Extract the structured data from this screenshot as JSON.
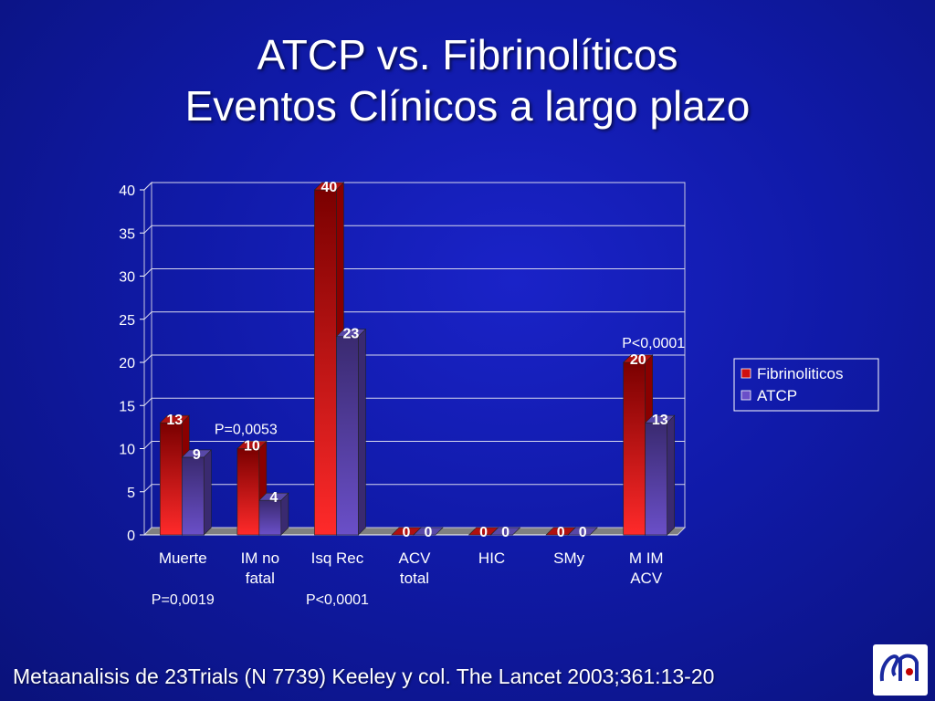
{
  "slide": {
    "title_line1": "ATCP vs. Fibrinolíticos",
    "title_line2": "Eventos Clínicos a largo plazo",
    "footer": "Metaanalisis de 23Trials (N 7739) Keeley y col. The Lancet 2003;361:13-20"
  },
  "colors": {
    "fibrinoliticos": "#d01010",
    "atcp": "#6a4fc8"
  },
  "chart_data": {
    "type": "bar",
    "categories": [
      "Muerte",
      "IM no fatal",
      "Isq Rec",
      "ACV total",
      "HIC",
      "SMy",
      "M IM ACV"
    ],
    "category_lines": [
      [
        "Muerte"
      ],
      [
        "IM no",
        "fatal"
      ],
      [
        "Isq Rec"
      ],
      [
        "ACV",
        "total"
      ],
      [
        "HIC"
      ],
      [
        "SMy"
      ],
      [
        "M IM",
        "ACV"
      ]
    ],
    "series": [
      {
        "name": "Fibrinoliticos",
        "values": [
          13,
          10,
          40,
          0,
          0,
          0,
          20
        ]
      },
      {
        "name": "ATCP",
        "values": [
          9,
          4,
          23,
          0,
          0,
          0,
          13
        ]
      }
    ],
    "ylim": [
      0,
      40
    ],
    "yticks": [
      0,
      5,
      10,
      15,
      20,
      25,
      30,
      35,
      40
    ],
    "grid": true,
    "legend": "right",
    "annotations": [
      {
        "text": "P=0,0019",
        "category": "Muerte",
        "placement": "below-axis"
      },
      {
        "text": "P=0,0053",
        "category": "IM no fatal",
        "placement": "above-bars"
      },
      {
        "text": "P<0,0001",
        "category": "Isq Rec",
        "placement": "below-axis"
      },
      {
        "text": "P<0,0001",
        "category": "M IM ACV",
        "placement": "above-bars"
      }
    ]
  }
}
